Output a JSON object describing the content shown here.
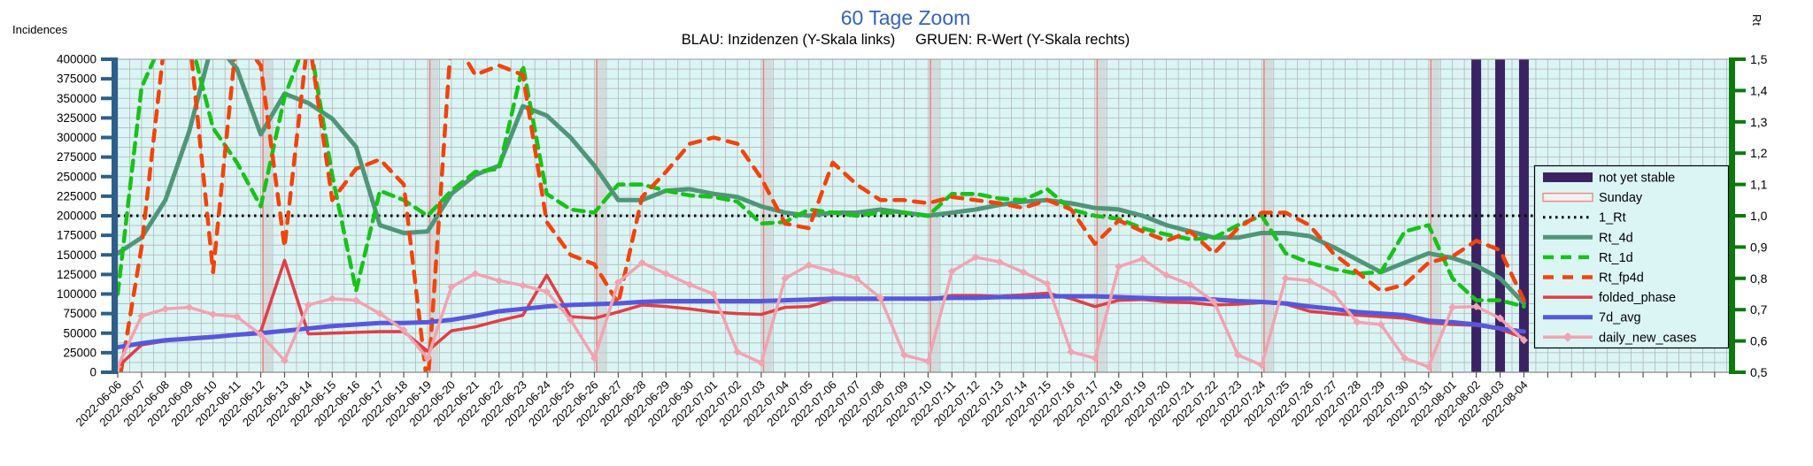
{
  "title": "60 Tage Zoom",
  "subtitle": "BLAU: Inzidenzen (Y-Skala links)     GRUEN: R-Wert (Y-Skala rechts)",
  "colors": {
    "title": "#3465bd",
    "plot_bg": "#dbf5f5",
    "grid": "#b2b6b8",
    "axis_left": "#2e5f8a",
    "axis_right": "#0c7a0c",
    "not_yet_stable": "#3b2363",
    "sunday_band": "#c9c9c9",
    "sunday_line": "#f08080",
    "one_rt": "#000000"
  },
  "chart_data": {
    "type": "line",
    "title": "60 Tage Zoom",
    "xlabel": "",
    "grid": true,
    "legend_position": "right-inside",
    "y_left": {
      "label": "Incidences",
      "min": 0,
      "max": 400000,
      "tick": 25000
    },
    "y_right": {
      "label": "Rt",
      "min": 0.5,
      "max": 1.5,
      "tick": 0.1,
      "decimal": "comma"
    },
    "one_rt": 1.0,
    "x": [
      "2022-06-06",
      "2022-06-07",
      "2022-06-08",
      "2022-06-09",
      "2022-06-10",
      "2022-06-11",
      "2022-06-12",
      "2022-06-13",
      "2022-06-14",
      "2022-06-15",
      "2022-06-16",
      "2022-06-17",
      "2022-06-18",
      "2022-06-19",
      "2022-06-20",
      "2022-06-21",
      "2022-06-22",
      "2022-06-23",
      "2022-06-24",
      "2022-06-25",
      "2022-06-26",
      "2022-06-27",
      "2022-06-28",
      "2022-06-29",
      "2022-06-30",
      "2022-07-01",
      "2022-07-02",
      "2022-07-03",
      "2022-07-04",
      "2022-07-05",
      "2022-07-06",
      "2022-07-07",
      "2022-07-08",
      "2022-07-09",
      "2022-07-10",
      "2022-07-11",
      "2022-07-12",
      "2022-07-13",
      "2022-07-14",
      "2022-07-15",
      "2022-07-16",
      "2022-07-17",
      "2022-07-18",
      "2022-07-19",
      "2022-07-20",
      "2022-07-21",
      "2022-07-22",
      "2022-07-23",
      "2022-07-24",
      "2022-07-25",
      "2022-07-26",
      "2022-07-27",
      "2022-07-28",
      "2022-07-29",
      "2022-07-30",
      "2022-07-31",
      "2022-08-01",
      "2022-08-02",
      "2022-08-03",
      "2022-08-04"
    ],
    "sundays": [
      "2022-06-12",
      "2022-06-19",
      "2022-06-26",
      "2022-07-03",
      "2022-07-10",
      "2022-07-17",
      "2022-07-24",
      "2022-07-31"
    ],
    "not_yet_stable": [
      "2022-08-02",
      "2022-08-03",
      "2022-08-04"
    ],
    "series": [
      {
        "name": "Rt_4d",
        "axis": "right",
        "color": "#4f9678",
        "width": 5,
        "dash": "",
        "values": [
          0.88,
          0.93,
          1.05,
          1.27,
          1.56,
          1.47,
          1.26,
          1.39,
          1.36,
          1.31,
          1.22,
          0.97,
          0.945,
          0.95,
          1.07,
          1.13,
          1.16,
          1.35,
          1.32,
          1.25,
          1.16,
          1.05,
          1.05,
          1.08,
          1.085,
          1.07,
          1.06,
          1.03,
          1.01,
          1.0,
          1.01,
          1.01,
          1.02,
          1.01,
          1.0,
          1.01,
          1.02,
          1.035,
          1.045,
          1.05,
          1.04,
          1.025,
          1.02,
          1.0,
          0.97,
          0.95,
          0.93,
          0.93,
          0.945,
          0.945,
          0.935,
          0.9,
          0.86,
          0.82,
          0.85,
          0.88,
          0.865,
          0.84,
          0.8,
          0.72
        ]
      },
      {
        "name": "Rt_1d",
        "axis": "right",
        "color": "#17c317",
        "width": 4.5,
        "dash": "12 8",
        "values": [
          0.75,
          1.41,
          1.58,
          1.58,
          1.28,
          1.17,
          1.03,
          1.38,
          1.58,
          1.13,
          0.76,
          1.08,
          1.05,
          1.0,
          1.08,
          1.14,
          1.15,
          1.48,
          1.07,
          1.02,
          1.01,
          1.1,
          1.1,
          1.08,
          1.065,
          1.06,
          1.045,
          0.975,
          0.98,
          1.02,
          1.01,
          1.0,
          1.01,
          1.01,
          1.0,
          1.07,
          1.07,
          1.055,
          1.05,
          1.085,
          1.02,
          1.0,
          0.99,
          0.96,
          0.94,
          0.925,
          0.93,
          0.97,
          1.0,
          0.88,
          0.85,
          0.83,
          0.815,
          0.82,
          0.95,
          0.97,
          0.8,
          0.73,
          0.73,
          0.71
        ]
      },
      {
        "name": "Rt_fp4d",
        "axis": "right",
        "color": "#f4430a",
        "width": 4.5,
        "dash": "12 10",
        "values": [
          0.44,
          0.9,
          1.58,
          1.58,
          0.82,
          1.58,
          1.48,
          0.9,
          1.58,
          1.05,
          1.15,
          1.18,
          1.1,
          0.45,
          1.58,
          1.45,
          1.48,
          1.45,
          0.98,
          0.875,
          0.845,
          0.72,
          1.06,
          1.14,
          1.23,
          1.25,
          1.23,
          1.12,
          0.975,
          0.96,
          1.17,
          1.1,
          1.05,
          1.05,
          1.04,
          1.06,
          1.05,
          1.04,
          1.025,
          1.05,
          1.02,
          0.91,
          0.985,
          0.95,
          0.92,
          0.95,
          0.88,
          0.96,
          1.01,
          1.01,
          0.97,
          0.88,
          0.82,
          0.76,
          0.78,
          0.85,
          0.87,
          0.92,
          0.89,
          0.73
        ]
      },
      {
        "name": "folded_phase",
        "axis": "left",
        "color": "#e43d45",
        "width": 3.5,
        "dash": "",
        "values": [
          7000,
          35000,
          40000,
          44000,
          46000,
          48000,
          52000,
          143000,
          49000,
          50000,
          51000,
          52000,
          52000,
          27000,
          53000,
          58000,
          66000,
          73000,
          124000,
          71000,
          69000,
          77000,
          86000,
          84000,
          81000,
          77000,
          75000,
          74000,
          83000,
          84000,
          93000,
          93000,
          93000,
          94000,
          93000,
          98000,
          98000,
          97000,
          99000,
          101000,
          94000,
          84000,
          92000,
          93000,
          90000,
          89000,
          86000,
          87000,
          89000,
          87000,
          78000,
          75000,
          73000,
          71000,
          69000,
          63000,
          61000,
          60000,
          55000,
          44000
        ]
      },
      {
        "name": "7d_avg",
        "axis": "left",
        "color": "#5757dd",
        "width": 5,
        "dash": "",
        "values": [
          32000,
          37000,
          41000,
          43000,
          45000,
          48000,
          50000,
          53000,
          56000,
          59000,
          61000,
          63000,
          63000,
          64000,
          67000,
          72000,
          78000,
          81000,
          84000,
          86000,
          87000,
          88000,
          90000,
          91000,
          91000,
          91000,
          91000,
          91000,
          92000,
          93000,
          94000,
          94000,
          94000,
          94000,
          94000,
          95000,
          95000,
          96000,
          96000,
          97000,
          97000,
          97000,
          96000,
          95000,
          94000,
          94000,
          93000,
          91000,
          90000,
          88000,
          84000,
          81000,
          77000,
          75000,
          73000,
          66000,
          64000,
          61000,
          56000,
          52000
        ]
      },
      {
        "name": "daily_new_cases",
        "axis": "left",
        "color": "#f2a3b0",
        "width": 3.5,
        "dash": "",
        "marker": "diamond",
        "values": [
          7000,
          72000,
          81000,
          83000,
          74000,
          71000,
          48000,
          15000,
          86000,
          94000,
          92000,
          75000,
          54000,
          18000,
          109000,
          126000,
          117000,
          111000,
          103000,
          67000,
          18000,
          115000,
          140000,
          126000,
          112000,
          100000,
          26000,
          12000,
          120000,
          137000,
          129000,
          120000,
          95000,
          22000,
          14000,
          129000,
          147000,
          141000,
          128000,
          113000,
          26000,
          18000,
          135000,
          145000,
          124000,
          112000,
          90000,
          22000,
          9000,
          120000,
          117000,
          101000,
          64000,
          61000,
          18000,
          7000,
          83000,
          84000,
          69000,
          41000
        ]
      }
    ],
    "legend": [
      {
        "label": "not yet stable",
        "type": "box"
      },
      {
        "label": "Sunday",
        "type": "sunday"
      },
      {
        "label": "1_Rt",
        "type": "rule"
      },
      {
        "label": "Rt_4d",
        "type": "series",
        "series": "Rt_4d"
      },
      {
        "label": "Rt_1d",
        "type": "series",
        "series": "Rt_1d"
      },
      {
        "label": "Rt_fp4d",
        "type": "series",
        "series": "Rt_fp4d"
      },
      {
        "label": "folded_phase",
        "type": "series",
        "series": "folded_phase"
      },
      {
        "label": "7d_avg",
        "type": "series",
        "series": "7d_avg"
      },
      {
        "label": "daily_new_cases",
        "type": "series",
        "series": "daily_new_cases"
      }
    ]
  }
}
